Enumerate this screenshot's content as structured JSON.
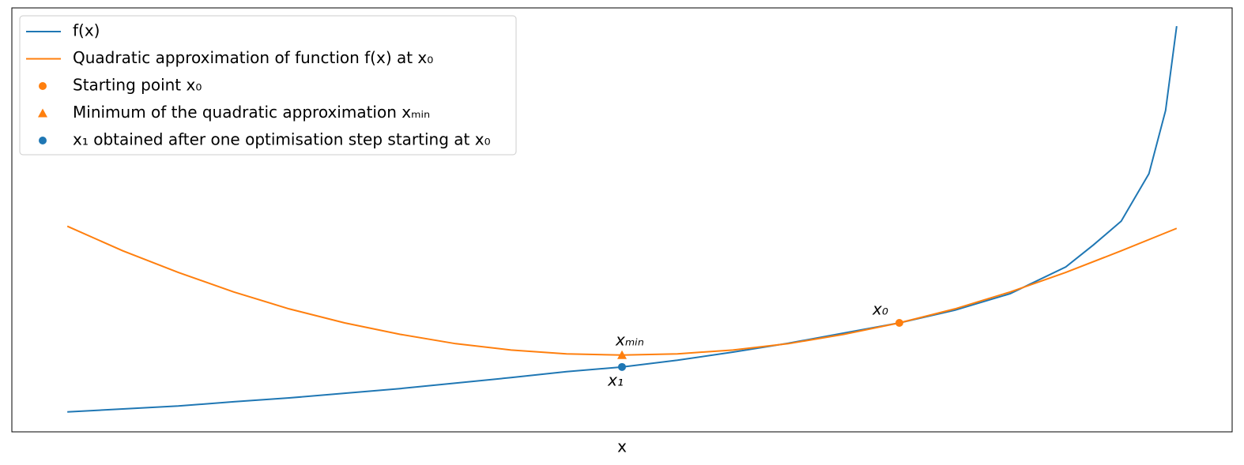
{
  "chart_data": {
    "type": "line",
    "xlabel": "x",
    "xlim": [
      -1,
      21
    ],
    "ylim": [
      0,
      10
    ],
    "legend": "upper left",
    "series": [
      {
        "name": "f(x)",
        "kind": "line",
        "color": "#1f77b4",
        "x": [
          0,
          1,
          2,
          3,
          4,
          5,
          6,
          7,
          8,
          9,
          10,
          11,
          12,
          13,
          14,
          15,
          16,
          17,
          18,
          18.5,
          19,
          19.5,
          19.8,
          20
        ],
        "values": [
          0.47,
          0.54,
          0.61,
          0.71,
          0.8,
          0.91,
          1.02,
          1.15,
          1.28,
          1.42,
          1.53,
          1.69,
          1.88,
          2.09,
          2.33,
          2.57,
          2.87,
          3.26,
          3.89,
          4.41,
          4.97,
          6.09,
          7.58,
          9.57
        ]
      },
      {
        "name": "Quadratic approximation of function f(x) at x₀",
        "kind": "line",
        "color": "#ff7f0e",
        "x": [
          0,
          1,
          2,
          3,
          4,
          5,
          6,
          7,
          8,
          9,
          10,
          11,
          12,
          13,
          14,
          15,
          16,
          17,
          18,
          19,
          20
        ],
        "values": [
          4.85,
          4.27,
          3.76,
          3.3,
          2.9,
          2.57,
          2.3,
          2.08,
          1.93,
          1.84,
          1.81,
          1.84,
          1.93,
          2.08,
          2.3,
          2.57,
          2.9,
          3.3,
          3.76,
          4.27,
          4.8
        ]
      },
      {
        "name": "Starting point x₀",
        "kind": "scatter",
        "marker": "circle",
        "color": "#ff7f0e",
        "x": [
          15
        ],
        "values": [
          2.57
        ],
        "point_label": "x₀"
      },
      {
        "name": "Minimum of the quadratic approximation xₘᵢₙ",
        "kind": "scatter",
        "marker": "triangle",
        "color": "#ff7f0e",
        "x": [
          10
        ],
        "values": [
          1.81
        ],
        "point_label": "xₘᵢₙ"
      },
      {
        "name": "x₁ obtained after one optimisation step starting at x₀",
        "kind": "scatter",
        "marker": "circle",
        "color": "#1f77b4",
        "x": [
          10
        ],
        "values": [
          1.53
        ],
        "point_label": "x₁"
      }
    ]
  }
}
